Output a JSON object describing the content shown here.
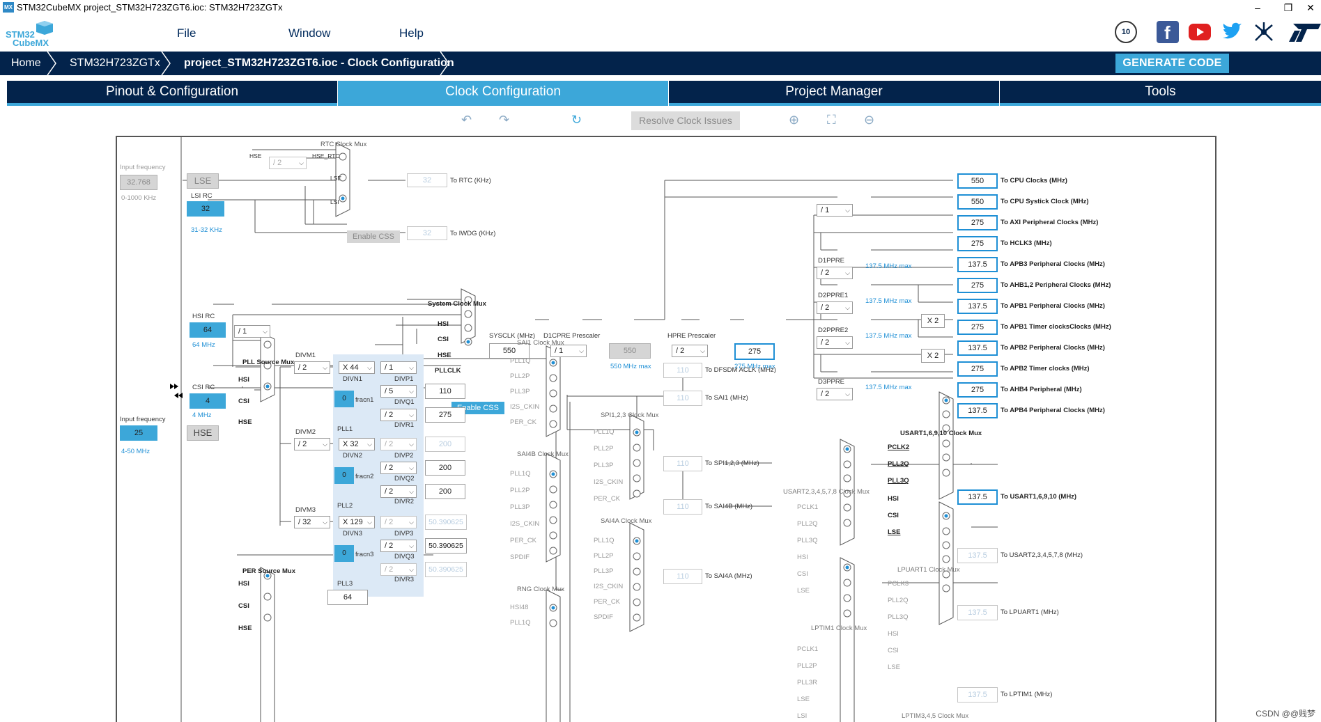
{
  "window": {
    "title": "STM32CubeMX project_STM32H723ZGT6.ioc: STM32H723ZGTx",
    "app_icon": "MX",
    "controls": [
      "–",
      "❐",
      "✕"
    ]
  },
  "menu": {
    "logo_line1": "STM32",
    "logo_line2": "CubeMX",
    "items": [
      "File",
      "Window",
      "Help"
    ]
  },
  "social": {
    "icons": [
      "anniversary-badge-icon",
      "facebook-icon",
      "youtube-icon",
      "twitter-icon",
      "network-icon",
      "st-logo-icon"
    ],
    "badge_text": "10"
  },
  "breadcrumb": {
    "items": [
      "Home",
      "STM32H723ZGTx",
      "project_STM32H723ZGT6.ioc - Clock Configuration"
    ]
  },
  "generate_button": "GENERATE CODE",
  "tabs": [
    {
      "label": "Pinout & Configuration",
      "active": false
    },
    {
      "label": "Clock Configuration",
      "active": true
    },
    {
      "label": "Project Manager",
      "active": false
    },
    {
      "label": "Tools",
      "active": false
    }
  ],
  "toolbar": {
    "undo": "↶",
    "redo": "↷",
    "refresh": "↻",
    "resolve": "Resolve Clock Issues",
    "zoom_in": "⊕",
    "fit": "⛶",
    "zoom_out": "⊖"
  },
  "clock": {
    "input_freq_label": "Input frequency",
    "lse_freq": "32.768",
    "lse_range": "0-1000 KHz",
    "lse": "LSE",
    "lsi_rc": "LSI RC",
    "lsi_val": "32",
    "lsi_range": "31-32 KHz",
    "rtc_mux": "RTC Clock Mux",
    "hse_label": "HSE",
    "hse_rtc": "HSE_RTC",
    "rtc_div": "/ 2",
    "lse_label": "LSE",
    "lsi_label": "LSI",
    "enable_css_1": "Enable CSS",
    "rtc_out": "32",
    "rtc_dest": "To RTC (KHz)",
    "iwdg_out": "32",
    "iwdg_dest": "To IWDG (KHz)",
    "hsi_rc": "HSI RC",
    "hsi_val": "64",
    "hsi_freq": "64 MHz",
    "hsi_div": "/ 1",
    "csi_rc": "CSI RC",
    "csi_val": "4",
    "csi_freq": "4 MHz",
    "hse_freq": "25",
    "hse_box": "HSE",
    "hse_range": "4-50 MHz",
    "pll_src_mux": "PLL Source Mux",
    "mux_hsi": "HSI",
    "mux_csi": "CSI",
    "mux_hse": "HSE",
    "sys_mux": "System Clock Mux",
    "sys_hsi": "HSI",
    "sys_csi": "CSI",
    "sys_hse": "HSE",
    "sys_pll": "PLLCLK",
    "enable_css_2": "Enable CSS",
    "sysclk_label": "SYSCLK (MHz)",
    "sysclk": "550",
    "d1cpre_label": "D1CPRE Prescaler",
    "d1cpre": "/ 1",
    "d1cpre_out": "550",
    "d1cpre_max": "550 MHz max",
    "hpre_label": "HPRE Prescaler",
    "hpre": "/ 2",
    "hpre_out": "275",
    "hpre_max": "275 MHz max",
    "divm1_label": "DIVM1",
    "divm1": "/ 2",
    "divn1": "X 44",
    "divn1_label": "DIVN1",
    "fracn1": "0",
    "fracn1_label": "fracn1",
    "pll1_label": "PLL1",
    "divp1": "/ 1",
    "divp1_label": "DIVP1",
    "divq1": "/ 5",
    "divq1_label": "DIVQ1",
    "divq1_out": "110",
    "divr1": "/ 2",
    "divr1_label": "DIVR1",
    "divr1_out": "275",
    "divm2_label": "DIVM2",
    "divm2": "/ 2",
    "divn2": "X 32",
    "divn2_label": "DIVN2",
    "fracn2": "0",
    "fracn2_label": "fracn2",
    "pll2_label": "PLL2",
    "divp2": "/ 2",
    "divp2_label": "DIVP2",
    "divp2_out": "200",
    "divq2": "/ 2",
    "divq2_label": "DIVQ2",
    "divq2_out": "200",
    "divr2": "/ 2",
    "divr2_label": "DIVR2",
    "divr2_out": "200",
    "divm3_label": "DIVM3",
    "divm3": "/ 32",
    "divn3": "X 129",
    "divn3_label": "DIVN3",
    "fracn3": "0",
    "fracn3_label": "fracn3",
    "pll3_label": "PLL3",
    "divp3": "/ 2",
    "divp3_label": "DIVP3",
    "divp3_out": "50.390625",
    "divq3": "/ 2",
    "divq3_label": "DIVQ3",
    "divq3_out": "50.390625",
    "divr3": "/ 2",
    "divr3_label": "DIVR3",
    "divr3_out": "50.390625",
    "per_mux": "PER Source Mux",
    "per_hsi": "HSI",
    "per_csi": "CSI",
    "per_hse": "HSE",
    "per_out": "64",
    "sai1_mux": "SAI1 Clock Mux",
    "sai1_in": [
      "PLL1Q",
      "PLL2P",
      "PLL3P",
      "I2S_CKIN",
      "PER_CK"
    ],
    "dfsdm_out": "110",
    "dfsdm_dest": "To DFSDM ACLK (MHz)",
    "sai1_out": "110",
    "sai1_dest": "To SAI1 (MHz)",
    "spi123_mux": "SPI1,2,3 Clock Mux",
    "spi123_in": [
      "PLL1Q",
      "PLL2P",
      "PLL3P",
      "I2S_CKIN",
      "PER_CK"
    ],
    "spi123_out": "110",
    "spi123_dest": "To SPI1,2,3 (MHz)",
    "sai4b_mux": "SAI4B Clock Mux",
    "sai4b_in": [
      "PLL1Q",
      "PLL2P",
      "PLL3P",
      "I2S_CKIN",
      "PER_CK",
      "SPDIF"
    ],
    "sai4b_out": "110",
    "sai4b_dest": "To SAI4B (MHz)",
    "sai4a_mux": "SAI4A Clock Mux",
    "sai4a_in": [
      "PLL1Q",
      "PLL2P",
      "PLL3P",
      "I2S_CKIN",
      "PER_CK",
      "SPDIF"
    ],
    "sai4a_out": "110",
    "sai4a_dest": "To SAI4A (MHz)",
    "rng_mux": "RNG Clock Mux",
    "rng_in": [
      "HSI48",
      "PLL1Q"
    ],
    "cpu_div": "/ 1",
    "d1ppre_label": "D1PPRE",
    "d1ppre": "/ 2",
    "d1ppre_max": "137.5 MHz max",
    "d2ppre1_label": "D2PPRE1",
    "d2ppre1": "/ 2",
    "d2ppre1_max": "137.5 MHz max",
    "d2ppre2_label": "D2PPRE2",
    "d2ppre2": "/ 2",
    "d2ppre2_max": "137.5 MHz max",
    "d3ppre_label": "D3PPRE",
    "d3ppre": "/ 2",
    "d3ppre_max": "137.5 MHz max",
    "x2a": "X 2",
    "x2b": "X 2",
    "outputs": [
      {
        "value": "550",
        "dest": "To CPU Clocks (MHz)"
      },
      {
        "value": "550",
        "dest": "To CPU Systick Clock (MHz)"
      },
      {
        "value": "275",
        "dest": "To AXI Peripheral Clocks (MHz)"
      },
      {
        "value": "275",
        "dest": "To HCLK3 (MHz)"
      },
      {
        "value": "137.5",
        "dest": "To APB3 Peripheral Clocks (MHz)"
      },
      {
        "value": "275",
        "dest": "To AHB1,2 Peripheral Clocks (MHz)"
      },
      {
        "value": "137.5",
        "dest": "To APB1 Peripheral Clocks (MHz)"
      },
      {
        "value": "275",
        "dest": "To APB1 Timer clocksClocks (MHz)"
      },
      {
        "value": "137.5",
        "dest": "To APB2 Peripheral Clocks (MHz)"
      },
      {
        "value": "275",
        "dest": "To APB2 Timer clocks (MHz)"
      },
      {
        "value": "275",
        "dest": "To AHB4 Peripheral (MHz)"
      },
      {
        "value": "137.5",
        "dest": "To APB4 Peripheral Clocks (MHz)"
      }
    ],
    "usart1_mux": "USART1,6,9,10 Clock Mux",
    "usart1_in": [
      "PCLK2",
      "PLL2Q",
      "PLL3Q",
      "HSI",
      "CSI",
      "LSE"
    ],
    "usart1_out": "137.5",
    "usart1_dest": "To USART1,6,9,10 (MHz)",
    "usart2_mux": "USART2,3,4,5,7,8 Clock Mux",
    "usart2_in": [
      "PCLK1",
      "PLL2Q",
      "PLL3Q",
      "HSI",
      "CSI",
      "LSE"
    ],
    "usart2_out": "137.5",
    "usart2_dest": "To USART2,3,4,5,7,8 (MHz)",
    "lpuart1_mux": "LPUART1 Clock Mux",
    "lpuart1_in": [
      "PCLK3",
      "PLL2Q",
      "PLL3Q",
      "HSI",
      "CSI",
      "LSE"
    ],
    "lpuart1_out": "137.5",
    "lpuart1_dest": "To LPUART1 (MHz)",
    "lptim1_mux": "LPTIM1 Clock Mux",
    "lptim1_in": [
      "PCLK1",
      "PLL2P",
      "PLL3R",
      "LSE",
      "LSI"
    ],
    "lptim1_out": "137.5",
    "lptim1_dest": "To LPTIM1 (MHz)",
    "lptim345_mux": "LPTIM3,4,5 Clock Mux"
  },
  "footer": "CSDN @@贱梦"
}
